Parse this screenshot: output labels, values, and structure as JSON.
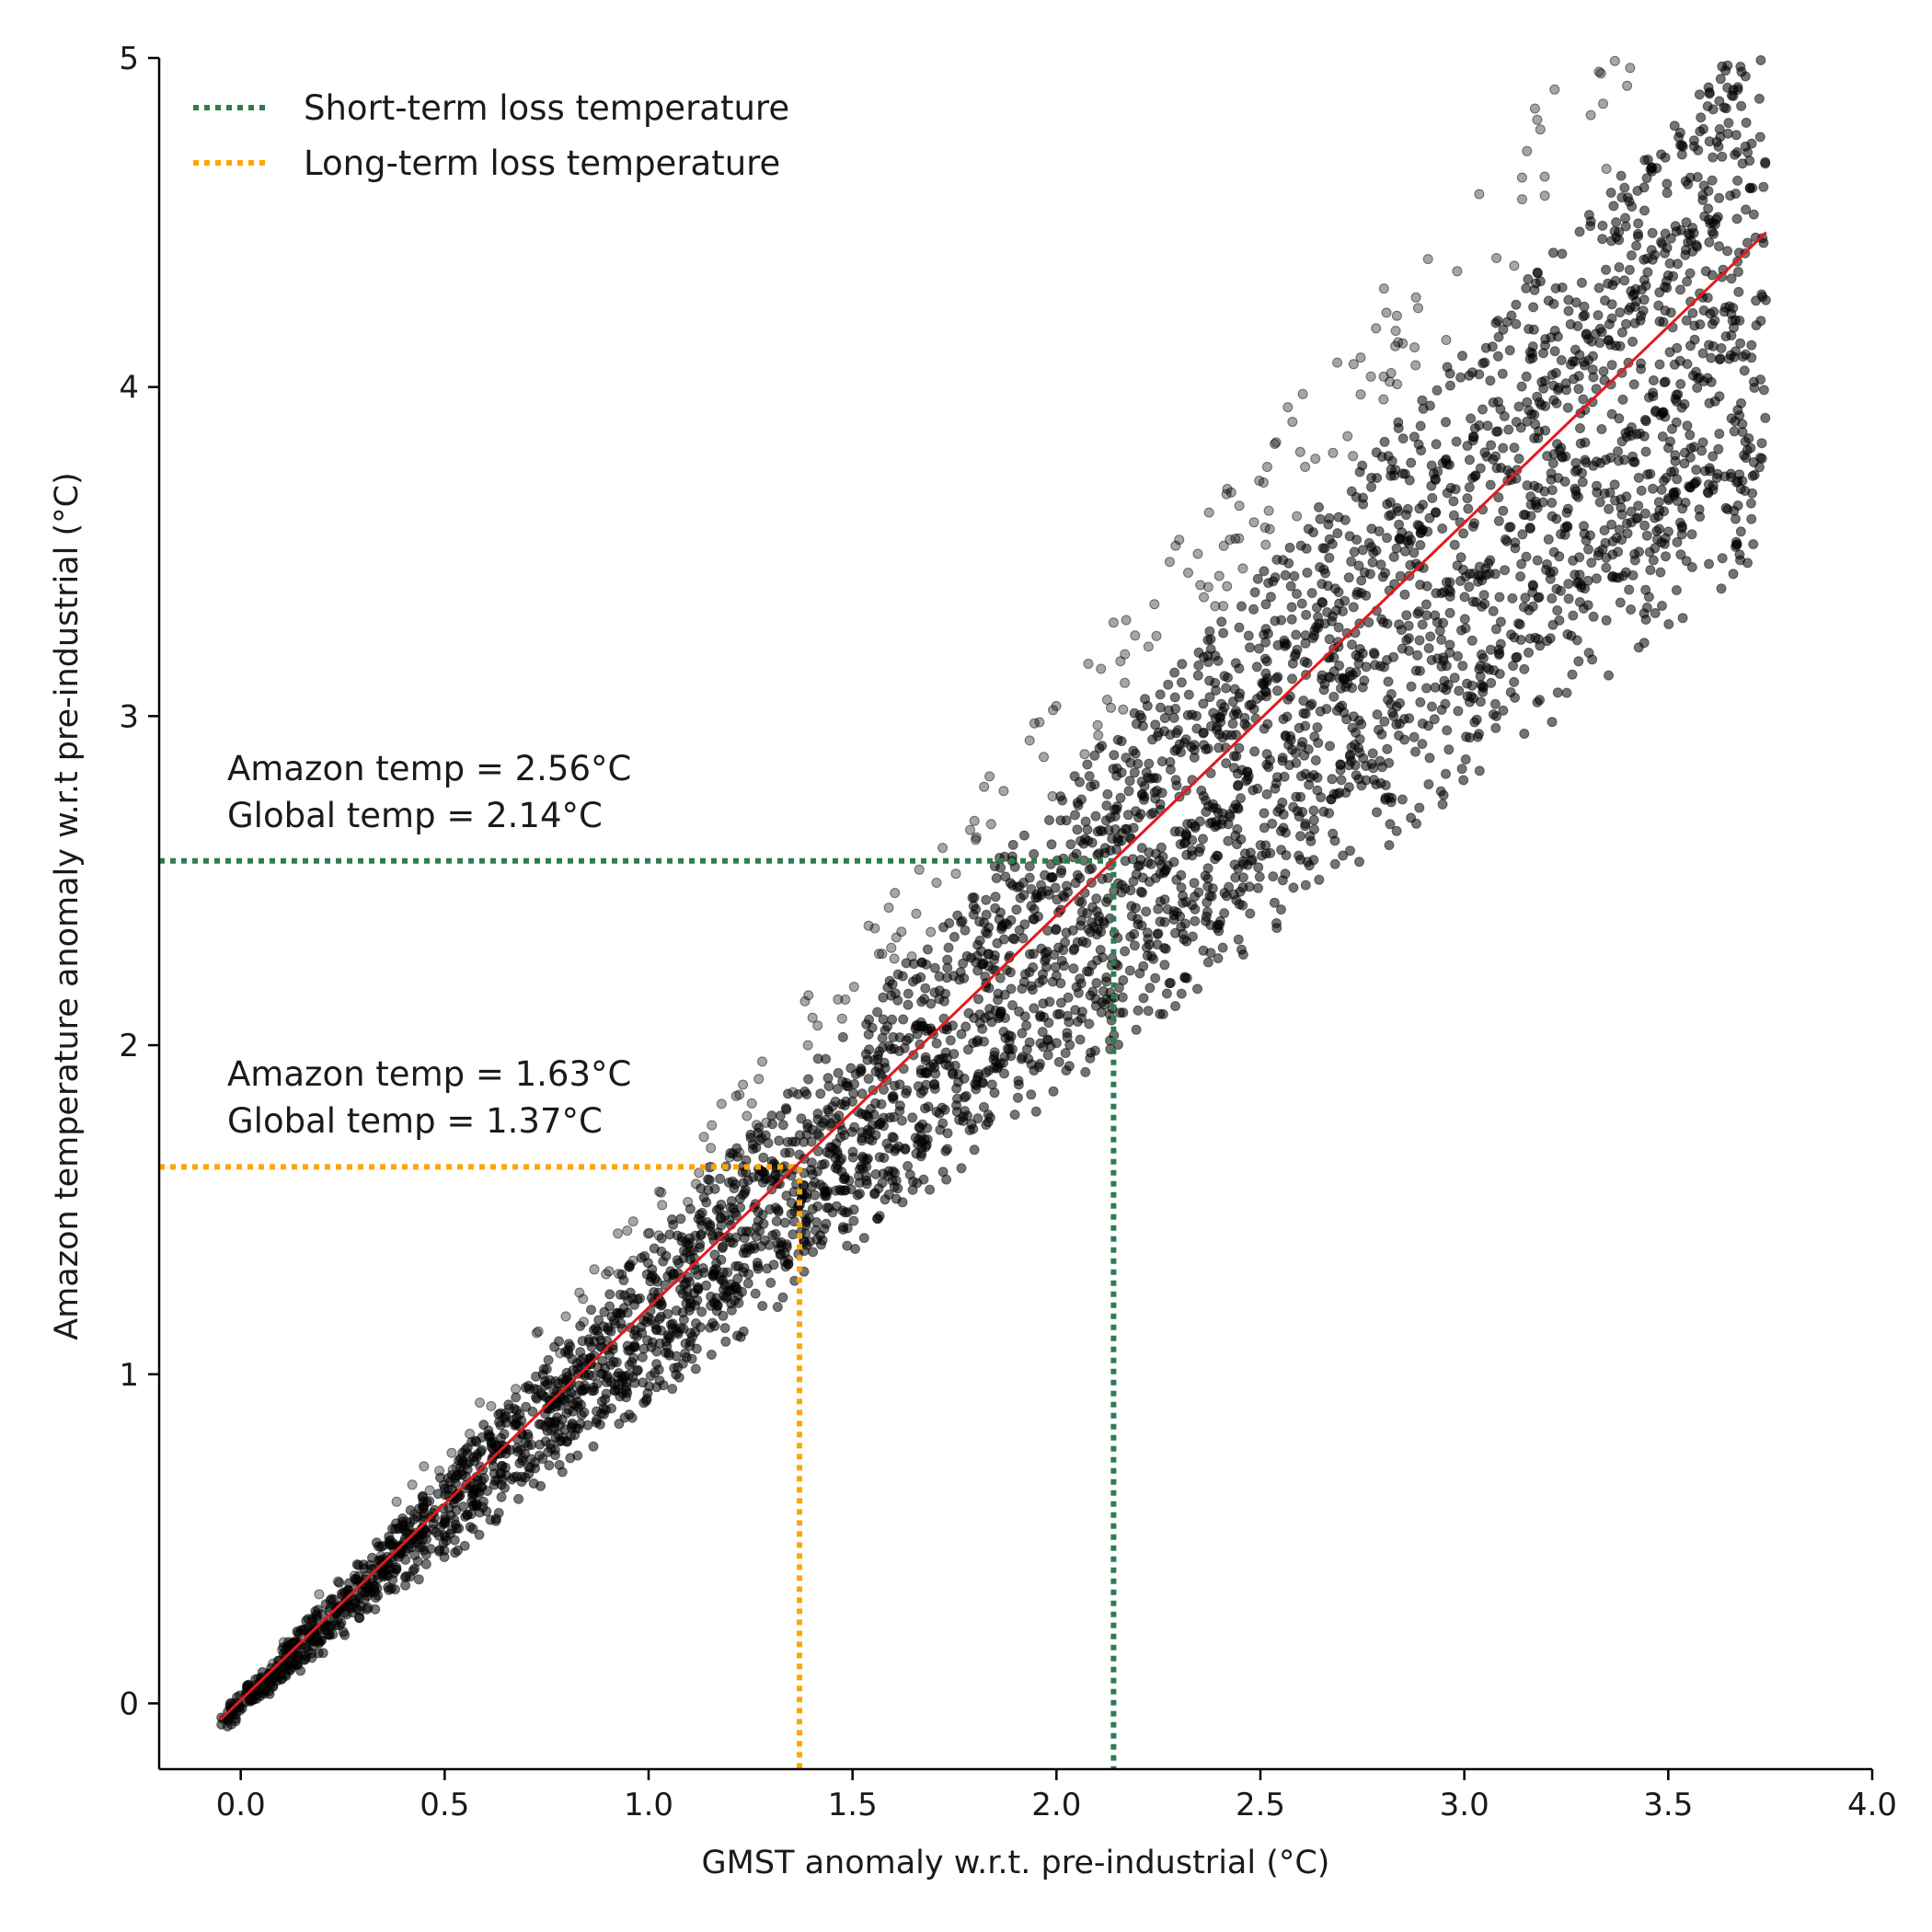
{
  "chart_data": {
    "type": "scatter",
    "xlabel": "GMST anomaly w.r.t. pre-industrial (°C)",
    "ylabel": "Amazon temperature anomaly w.r.t pre-industrial (°C)",
    "xlim": [
      -0.2,
      4.0
    ],
    "ylim": [
      -0.2,
      5.0
    ],
    "xticks": [
      "0.0",
      "0.5",
      "1.0",
      "1.5",
      "2.0",
      "2.5",
      "3.0",
      "3.5",
      "4.0"
    ],
    "yticks": [
      "0",
      "1",
      "2",
      "3",
      "4",
      "5"
    ],
    "grid": false,
    "legend_position": "upper-left",
    "scatter": {
      "color": "#000000",
      "x_range": [
        -0.05,
        3.74
      ],
      "note_bands": [
        {
          "slope": 1.46,
          "x_max": 3.42,
          "density": "sparse"
        },
        {
          "slope": 1.3,
          "x_max": 3.74,
          "density": "dense"
        },
        {
          "slope": 1.19,
          "x_max": 3.74,
          "density": "dense"
        },
        {
          "slope": 1.08,
          "x_max": 3.74,
          "density": "dense"
        },
        {
          "slope": 1.0,
          "x_max": 3.74,
          "density": "medium"
        }
      ]
    },
    "fit_line": {
      "color": "#e31a1c",
      "x": [
        -0.05,
        3.74
      ],
      "y": [
        -0.05,
        4.47
      ]
    },
    "thresholds": [
      {
        "name": "Short-term loss temperature",
        "color": "#2e7d4f",
        "x": 2.14,
        "y": 2.56,
        "annotation_line1": "Amazon temp = 2.56°C",
        "annotation_line2": "Global temp = 2.14°C"
      },
      {
        "name": "Long-term loss temperature",
        "color": "#ffa500",
        "x": 1.37,
        "y": 1.63,
        "annotation_line1": "Amazon temp = 1.63°C",
        "annotation_line2": "Global temp = 1.37°C"
      }
    ]
  }
}
